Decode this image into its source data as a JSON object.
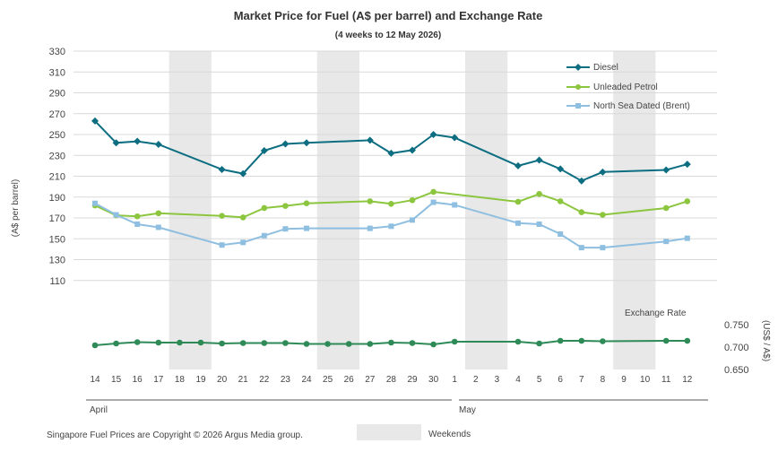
{
  "chart_data": {
    "type": "line",
    "title": "Market Price for Fuel (A$ per barrel) and Exchange Rate",
    "subtitle": "(4 weeks to 12 May 2026)",
    "ylabel": "(A$ per barrel)",
    "ylabel_right": "(US$ / A$)",
    "ylim": [
      90,
      330
    ],
    "yticks": [
      110,
      130,
      150,
      170,
      190,
      210,
      230,
      250,
      270,
      290,
      310,
      330
    ],
    "ylim_right": [
      0.64,
      0.77
    ],
    "yticks_right": [
      0.65,
      0.7,
      0.75
    ],
    "ytick_labels_right": [
      "0.650",
      "0.700",
      "0.750"
    ],
    "x_labels": [
      "14",
      "15",
      "16",
      "17",
      "18",
      "19",
      "20",
      "21",
      "22",
      "23",
      "24",
      "25",
      "26",
      "27",
      "28",
      "29",
      "30",
      "1",
      "2",
      "3",
      "4",
      "5",
      "6",
      "7",
      "8",
      "9",
      "10",
      "11",
      "12"
    ],
    "months": [
      "April",
      "May"
    ],
    "weekend_bands": [
      [
        "18",
        "19"
      ],
      [
        "25",
        "26"
      ],
      [
        "2",
        "3"
      ],
      [
        "9",
        "10"
      ]
    ],
    "legend_placement": "top-right",
    "grid": true,
    "series": [
      {
        "name": "Diesel",
        "color": "#0d6e82",
        "marker": "diamond",
        "points": [
          [
            "14",
            263
          ],
          [
            "15",
            242
          ],
          [
            "16",
            243.5
          ],
          [
            "17",
            240.5
          ],
          [
            "20",
            216.5
          ],
          [
            "21",
            212.5
          ],
          [
            "22",
            234.5
          ],
          [
            "23",
            241
          ],
          [
            "24",
            242
          ],
          [
            "27",
            244.5
          ],
          [
            "28",
            232
          ],
          [
            "29",
            235
          ],
          [
            "30",
            250
          ],
          [
            "1",
            247
          ],
          [
            "4",
            220
          ],
          [
            "5",
            225.5
          ],
          [
            "6",
            217
          ],
          [
            "7",
            205.5
          ],
          [
            "8",
            214
          ],
          [
            "11",
            216
          ],
          [
            "12",
            221.5
          ]
        ]
      },
      {
        "name": "Unleaded Petrol",
        "color": "#8cc63f",
        "marker": "circle",
        "points": [
          [
            "14",
            182
          ],
          [
            "15",
            172.5
          ],
          [
            "16",
            171.5
          ],
          [
            "17",
            174.5
          ],
          [
            "20",
            172
          ],
          [
            "21",
            170.5
          ],
          [
            "22",
            179.5
          ],
          [
            "23",
            181.5
          ],
          [
            "24",
            184
          ],
          [
            "27",
            186
          ],
          [
            "28",
            183.5
          ],
          [
            "29",
            187
          ],
          [
            "30",
            195
          ],
          [
            "4",
            185.5
          ],
          [
            "5",
            193
          ],
          [
            "6",
            186
          ],
          [
            "7",
            175.5
          ],
          [
            "8",
            173
          ],
          [
            "11",
            179.5
          ],
          [
            "12",
            186
          ]
        ]
      },
      {
        "name": "North Sea Dated (Brent)",
        "color": "#8fbfe0",
        "marker": "square",
        "points": [
          [
            "14",
            184
          ],
          [
            "15",
            173
          ],
          [
            "16",
            164
          ],
          [
            "17",
            161
          ],
          [
            "20",
            144
          ],
          [
            "21",
            146.5
          ],
          [
            "22",
            153
          ],
          [
            "23",
            159.5
          ],
          [
            "24",
            160
          ],
          [
            "27",
            160
          ],
          [
            "28",
            162
          ],
          [
            "29",
            168
          ],
          [
            "30",
            185
          ],
          [
            "1",
            182.5
          ],
          [
            "4",
            165
          ],
          [
            "5",
            164
          ],
          [
            "6",
            154.5
          ],
          [
            "7",
            141.5
          ],
          [
            "8",
            141.5
          ],
          [
            "11",
            147.5
          ],
          [
            "12",
            150.5
          ]
        ]
      },
      {
        "name": "Exchange Rate",
        "color": "#2e8b57",
        "marker": "circle",
        "axis": "right",
        "points": [
          [
            "14",
            0.704
          ],
          [
            "15",
            0.708
          ],
          [
            "16",
            0.711
          ],
          [
            "17",
            0.71
          ],
          [
            "18",
            0.71
          ],
          [
            "19",
            0.71
          ],
          [
            "20",
            0.708
          ],
          [
            "21",
            0.709
          ],
          [
            "22",
            0.709
          ],
          [
            "23",
            0.709
          ],
          [
            "24",
            0.707
          ],
          [
            "25",
            0.707
          ],
          [
            "26",
            0.707
          ],
          [
            "27",
            0.707
          ],
          [
            "28",
            0.71
          ],
          [
            "29",
            0.709
          ],
          [
            "30",
            0.706
          ],
          [
            "1",
            0.712
          ],
          [
            "4",
            0.712
          ],
          [
            "5",
            0.708
          ],
          [
            "6",
            0.714
          ],
          [
            "7",
            0.714
          ],
          [
            "8",
            0.713
          ],
          [
            "11",
            0.714
          ],
          [
            "12",
            0.714
          ]
        ]
      }
    ],
    "exchange_rate_label": "Exchange Rate"
  },
  "footer": {
    "copyright": "Singapore Fuel Prices are Copyright © 2026 Argus Media group.",
    "weekends_label": "Weekends"
  }
}
